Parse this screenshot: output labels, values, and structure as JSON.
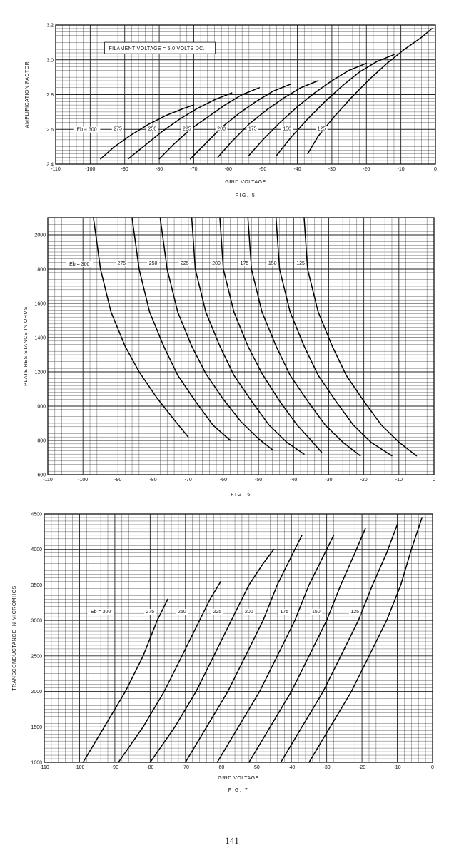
{
  "page": {
    "number": "141"
  },
  "chart_data": [
    {
      "type": "line",
      "figure": "FIG. 5",
      "xlabel": "GRID VOLTAGE",
      "ylabel": "AMPLIFICATION FACTOR",
      "annotation": "FILAMENT VOLTAGE = 5.0 VOLTS DC.",
      "xlim": [
        -110,
        0
      ],
      "ylim": [
        2.4,
        3.2
      ],
      "x_ticks": [
        -110,
        -100,
        -90,
        -80,
        -70,
        -60,
        -50,
        -40,
        -30,
        -20,
        -10,
        0
      ],
      "x_tick_labels": [
        "-110",
        "-100",
        "-90",
        "-80",
        "-70",
        "-60",
        "-50",
        "-40",
        "-30",
        "-20",
        "-10",
        "0"
      ],
      "y_ticks": [
        2.4,
        2.6,
        2.8,
        3.0,
        3.2
      ],
      "y_tick_labels": [
        "2.4",
        "2.6",
        "2.8",
        "3.0",
        "3.2"
      ],
      "grid": true,
      "series": [
        {
          "name": "Eb = 300",
          "x": [
            -97,
            -93,
            -88,
            -83,
            -78,
            -73,
            -70
          ],
          "y": [
            2.43,
            2.5,
            2.57,
            2.63,
            2.68,
            2.72,
            2.74
          ]
        },
        {
          "name": "275",
          "x": [
            -89,
            -84,
            -79,
            -74,
            -69,
            -64,
            -59
          ],
          "y": [
            2.43,
            2.51,
            2.59,
            2.66,
            2.72,
            2.77,
            2.81
          ]
        },
        {
          "name": "250",
          "x": [
            -80,
            -76,
            -71,
            -66,
            -61,
            -56,
            -51
          ],
          "y": [
            2.43,
            2.51,
            2.6,
            2.67,
            2.74,
            2.8,
            2.84
          ]
        },
        {
          "name": "225",
          "x": [
            -71,
            -67,
            -62,
            -57,
            -52,
            -47,
            -42
          ],
          "y": [
            2.43,
            2.51,
            2.61,
            2.69,
            2.76,
            2.82,
            2.86
          ]
        },
        {
          "name": "200",
          "x": [
            -63,
            -59,
            -54,
            -49,
            -44,
            -39,
            -34
          ],
          "y": [
            2.44,
            2.53,
            2.63,
            2.71,
            2.78,
            2.84,
            2.88
          ]
        },
        {
          "name": "175",
          "x": [
            -54,
            -50,
            -45,
            -40,
            -35,
            -30,
            -25,
            -20
          ],
          "y": [
            2.45,
            2.54,
            2.64,
            2.73,
            2.81,
            2.88,
            2.94,
            2.98
          ]
        },
        {
          "name": "150",
          "x": [
            -46,
            -42,
            -37,
            -32,
            -27,
            -22,
            -17,
            -12
          ],
          "y": [
            2.45,
            2.55,
            2.66,
            2.76,
            2.85,
            2.93,
            2.99,
            3.03
          ]
        },
        {
          "name": "125",
          "x": [
            -37,
            -34,
            -29,
            -24,
            -19,
            -14,
            -9,
            -4,
            -1
          ],
          "y": [
            2.46,
            2.56,
            2.68,
            2.79,
            2.89,
            2.98,
            3.06,
            3.13,
            3.18
          ]
        }
      ]
    },
    {
      "type": "line",
      "figure": "FIG. 6",
      "xlabel": "",
      "ylabel": "PLATE RESISTANCE IN OHMS",
      "xlim": [
        -110,
        0
      ],
      "ylim": [
        600,
        2100
      ],
      "x_ticks": [
        -110,
        -100,
        -90,
        -80,
        -70,
        -60,
        -50,
        -40,
        -30,
        -20,
        -10,
        0
      ],
      "x_tick_labels": [
        "-110",
        "-100",
        "-90",
        "-80",
        "-70",
        "-60",
        "-50",
        "-40",
        "-30",
        "-20",
        "-10",
        "0"
      ],
      "y_ticks": [
        600,
        800,
        1000,
        1200,
        1400,
        1600,
        1800,
        2000
      ],
      "y_tick_labels": [
        "600",
        "800",
        "1000",
        "1200",
        "1400",
        "1600",
        "1800",
        "2000"
      ],
      "grid": true,
      "series": [
        {
          "name": "Eb = 300",
          "x": [
            -97,
            -95,
            -92,
            -88,
            -84,
            -79,
            -74,
            -70
          ],
          "y": [
            2100,
            1800,
            1550,
            1350,
            1200,
            1050,
            920,
            820
          ]
        },
        {
          "name": "275",
          "x": [
            -86,
            -84,
            -81,
            -77,
            -73,
            -68,
            -63,
            -58
          ],
          "y": [
            2100,
            1800,
            1550,
            1350,
            1180,
            1030,
            890,
            800
          ]
        },
        {
          "name": "250",
          "x": [
            -78,
            -76,
            -73,
            -69,
            -65,
            -60,
            -55,
            -50,
            -46
          ],
          "y": [
            2100,
            1800,
            1550,
            1350,
            1190,
            1040,
            910,
            810,
            745
          ]
        },
        {
          "name": "225",
          "x": [
            -69,
            -68,
            -65,
            -61,
            -57,
            -52,
            -47,
            -42,
            -37
          ],
          "y": [
            2100,
            1800,
            1550,
            1350,
            1180,
            1030,
            890,
            790,
            720
          ]
        },
        {
          "name": "200",
          "x": [
            -61,
            -60,
            -57,
            -53,
            -49,
            -44,
            -39,
            -35,
            -32
          ],
          "y": [
            2100,
            1800,
            1550,
            1350,
            1190,
            1030,
            890,
            800,
            730
          ]
        },
        {
          "name": "175",
          "x": [
            -53,
            -52,
            -49,
            -45,
            -41,
            -36,
            -31,
            -26,
            -21
          ],
          "y": [
            2100,
            1800,
            1550,
            1350,
            1180,
            1030,
            890,
            790,
            710
          ]
        },
        {
          "name": "150",
          "x": [
            -45,
            -44,
            -41,
            -37,
            -33,
            -28,
            -23,
            -18,
            -12
          ],
          "y": [
            2100,
            1800,
            1550,
            1350,
            1180,
            1030,
            890,
            790,
            710
          ]
        },
        {
          "name": "125",
          "x": [
            -37,
            -36,
            -33,
            -29,
            -25,
            -20,
            -15,
            -10,
            -5
          ],
          "y": [
            2100,
            1800,
            1550,
            1350,
            1180,
            1030,
            890,
            790,
            710
          ]
        }
      ]
    },
    {
      "type": "line",
      "figure": "FIG. 7",
      "xlabel": "GRID VOLTAGE",
      "ylabel": "TRANSCONDUCTANCE IN MICROMHOS",
      "xlim": [
        -110,
        0
      ],
      "ylim": [
        1000,
        4500
      ],
      "x_ticks": [
        -110,
        -100,
        -90,
        -80,
        -70,
        -60,
        -50,
        -40,
        -30,
        -20,
        -10,
        0
      ],
      "x_tick_labels": [
        "-110",
        "-100",
        "-90",
        "-80",
        "-70",
        "-60",
        "-50",
        "-40",
        "-30",
        "-20",
        "-10",
        "0"
      ],
      "y_ticks": [
        1000,
        1500,
        2000,
        2500,
        3000,
        3500,
        4000,
        4500
      ],
      "y_tick_labels": [
        "1000",
        "1500",
        "2000",
        "2500",
        "3000",
        "3500",
        "4000",
        "4500"
      ],
      "grid": true,
      "series": [
        {
          "name": "Eb = 300",
          "x": [
            -99,
            -93,
            -87,
            -82,
            -78,
            -75
          ],
          "y": [
            1000,
            1500,
            2000,
            2500,
            3000,
            3300
          ]
        },
        {
          "name": "275",
          "x": [
            -89,
            -82,
            -76,
            -71,
            -66,
            -63,
            -60
          ],
          "y": [
            1000,
            1500,
            2000,
            2500,
            3000,
            3300,
            3550
          ]
        },
        {
          "name": "250",
          "x": [
            -80,
            -73,
            -67,
            -62,
            -57,
            -52,
            -48,
            -45
          ],
          "y": [
            1000,
            1500,
            2000,
            2500,
            3000,
            3500,
            3800,
            4000
          ]
        },
        {
          "name": "225",
          "x": [
            -70,
            -64,
            -58,
            -53,
            -48,
            -44,
            -41,
            -37
          ],
          "y": [
            1000,
            1500,
            2000,
            2500,
            3000,
            3500,
            3800,
            4200
          ]
        },
        {
          "name": "200",
          "x": [
            -61,
            -55,
            -49,
            -44,
            -39,
            -35,
            -31,
            -28
          ],
          "y": [
            1000,
            1500,
            2000,
            2500,
            3000,
            3500,
            3900,
            4200
          ]
        },
        {
          "name": "175",
          "x": [
            -52,
            -46,
            -40,
            -35,
            -30,
            -26,
            -22,
            -19
          ],
          "y": [
            1000,
            1500,
            2000,
            2500,
            3000,
            3500,
            3950,
            4300
          ]
        },
        {
          "name": "150",
          "x": [
            -43,
            -37,
            -31,
            -26,
            -21,
            -17,
            -13,
            -10
          ],
          "y": [
            1000,
            1500,
            2000,
            2500,
            3000,
            3500,
            3950,
            4350
          ]
        },
        {
          "name": "125",
          "x": [
            -35,
            -29,
            -23,
            -18,
            -13,
            -9,
            -6,
            -3
          ],
          "y": [
            1000,
            1500,
            2000,
            2500,
            3000,
            3500,
            4000,
            4450
          ]
        }
      ]
    }
  ]
}
